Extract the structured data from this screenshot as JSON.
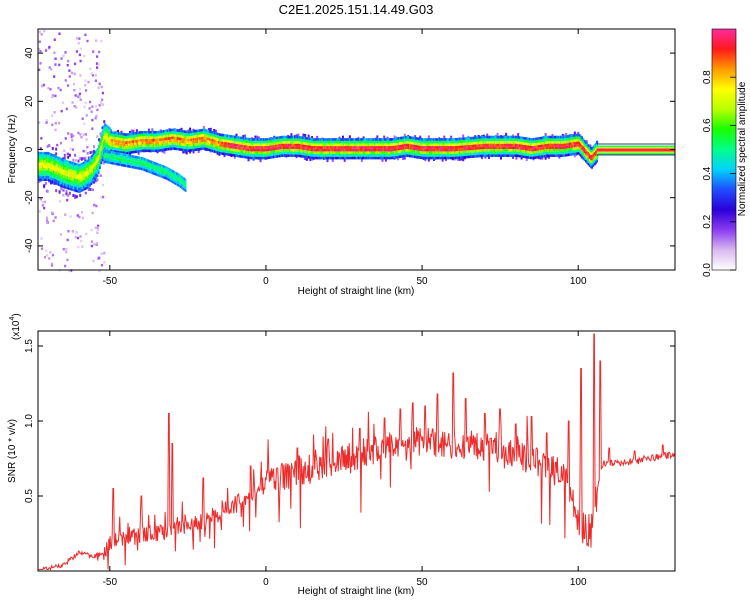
{
  "title": "C2E1.2025.151.14.49.G03",
  "colors": {
    "snr_line": "#ee2b2b",
    "frame": "#000000",
    "line_gray": "#777777"
  },
  "colormap": [
    "#ffffff",
    "#d9b8f0",
    "#8a3cf0",
    "#2b00d8",
    "#1f4cff",
    "#00d2ff",
    "#00ff8c",
    "#18ff00",
    "#b8ff00",
    "#ffff00",
    "#ff9a00",
    "#ff1a1a",
    "#ff2aa0"
  ],
  "chart_data": [
    {
      "type": "heatmap",
      "xlabel": "Height of straight line (km)",
      "ylabel": "Frequency (Hz)",
      "xlim": [
        -73,
        131
      ],
      "ylim": [
        -50,
        50
      ],
      "xticks": [
        -50,
        0,
        50,
        100
      ],
      "yticks": [
        -40,
        -20,
        0,
        20,
        40
      ],
      "colorbar": {
        "label": "Normalized spectral amplitude",
        "range": [
          0,
          1
        ],
        "ticks": [
          "0.0",
          "0.2",
          "0.4",
          "0.6",
          "0.8"
        ],
        "tick_values": [
          0,
          0.2,
          0.4,
          0.6,
          0.8
        ]
      },
      "main_trace": [
        {
          "x": -70,
          "y": -6
        },
        {
          "x": -65,
          "y": -9
        },
        {
          "x": -60,
          "y": -11
        },
        {
          "x": -57,
          "y": -9
        },
        {
          "x": -54,
          "y": -4
        },
        {
          "x": -52,
          "y": 6
        },
        {
          "x": -50,
          "y": 4
        },
        {
          "x": -45,
          "y": 3
        },
        {
          "x": -40,
          "y": 4
        },
        {
          "x": -35,
          "y": 4
        },
        {
          "x": -30,
          "y": 5
        },
        {
          "x": -25,
          "y": 4
        },
        {
          "x": -20,
          "y": 5
        },
        {
          "x": -15,
          "y": 3
        },
        {
          "x": -10,
          "y": 2
        },
        {
          "x": -5,
          "y": 1
        },
        {
          "x": 0,
          "y": 1
        },
        {
          "x": 5,
          "y": 2
        },
        {
          "x": 10,
          "y": 2
        },
        {
          "x": 15,
          "y": 1
        },
        {
          "x": 20,
          "y": 1
        },
        {
          "x": 30,
          "y": 1
        },
        {
          "x": 40,
          "y": 1
        },
        {
          "x": 45,
          "y": 2
        },
        {
          "x": 50,
          "y": 1
        },
        {
          "x": 55,
          "y": 1
        },
        {
          "x": 60,
          "y": 1
        },
        {
          "x": 70,
          "y": 2
        },
        {
          "x": 75,
          "y": 2
        },
        {
          "x": 80,
          "y": 2
        },
        {
          "x": 85,
          "y": 1
        },
        {
          "x": 90,
          "y": 2
        },
        {
          "x": 95,
          "y": 2
        },
        {
          "x": 100,
          "y": 3
        },
        {
          "x": 102,
          "y": 0
        },
        {
          "x": 104,
          "y": -3
        },
        {
          "x": 106,
          "y": 0
        }
      ],
      "secondary_trace": [
        {
          "x": -52,
          "y": -2
        },
        {
          "x": -48,
          "y": -3
        },
        {
          "x": -44,
          "y": -4
        },
        {
          "x": -40,
          "y": -5
        },
        {
          "x": -36,
          "y": -7
        },
        {
          "x": -32,
          "y": -9
        },
        {
          "x": -28,
          "y": -12
        },
        {
          "x": -26,
          "y": -14
        }
      ],
      "constant_line": {
        "x_start": 106,
        "x_end": 131,
        "y": 0
      }
    },
    {
      "type": "line",
      "xlabel": "Height of straight line (km)",
      "ylabel": "SNR (10 * v/v)",
      "y_multiplier_label": "(x10",
      "y_multiplier_exponent": "4",
      "y_multiplier_close": ")",
      "xlim": [
        -73,
        131
      ],
      "ylim": [
        0,
        1.6
      ],
      "xticks": [
        -50,
        0,
        50,
        100
      ],
      "yticks": [
        "0.5",
        "1.0",
        "1.5"
      ],
      "ytick_values": [
        0.5,
        1.0,
        1.5
      ],
      "series": [
        {
          "envelope": [
            {
              "x": -73,
              "y": 0.0
            },
            {
              "x": -65,
              "y": 0.04
            },
            {
              "x": -60,
              "y": 0.12
            },
            {
              "x": -55,
              "y": 0.1
            },
            {
              "x": -52,
              "y": 0.12
            },
            {
              "x": -50,
              "y": 0.2
            },
            {
              "x": -45,
              "y": 0.22
            },
            {
              "x": -40,
              "y": 0.23
            },
            {
              "x": -35,
              "y": 0.25
            },
            {
              "x": -30,
              "y": 0.26
            },
            {
              "x": -25,
              "y": 0.32
            },
            {
              "x": -20,
              "y": 0.34
            },
            {
              "x": -15,
              "y": 0.38
            },
            {
              "x": -10,
              "y": 0.44
            },
            {
              "x": -5,
              "y": 0.5
            },
            {
              "x": 0,
              "y": 0.58
            },
            {
              "x": 5,
              "y": 0.63
            },
            {
              "x": 10,
              "y": 0.66
            },
            {
              "x": 15,
              "y": 0.68
            },
            {
              "x": 20,
              "y": 0.72
            },
            {
              "x": 25,
              "y": 0.75
            },
            {
              "x": 30,
              "y": 0.78
            },
            {
              "x": 35,
              "y": 0.8
            },
            {
              "x": 40,
              "y": 0.84
            },
            {
              "x": 45,
              "y": 0.86
            },
            {
              "x": 50,
              "y": 0.86
            },
            {
              "x": 55,
              "y": 0.85
            },
            {
              "x": 60,
              "y": 0.84
            },
            {
              "x": 65,
              "y": 0.84
            },
            {
              "x": 70,
              "y": 0.82
            },
            {
              "x": 75,
              "y": 0.8
            },
            {
              "x": 80,
              "y": 0.78
            },
            {
              "x": 85,
              "y": 0.74
            },
            {
              "x": 90,
              "y": 0.7
            },
            {
              "x": 95,
              "y": 0.64
            },
            {
              "x": 98,
              "y": 0.52
            },
            {
              "x": 100,
              "y": 0.32
            },
            {
              "x": 102,
              "y": 0.24
            },
            {
              "x": 104,
              "y": 0.26
            },
            {
              "x": 106,
              "y": 0.55
            },
            {
              "x": 108,
              "y": 0.72
            },
            {
              "x": 115,
              "y": 0.72
            },
            {
              "x": 120,
              "y": 0.74
            },
            {
              "x": 125,
              "y": 0.76
            },
            {
              "x": 131,
              "y": 0.78
            }
          ],
          "spikes": [
            {
              "x": -49,
              "y": 0.55
            },
            {
              "x": -40,
              "y": 0.5
            },
            {
              "x": -31,
              "y": 1.05
            },
            {
              "x": -30,
              "y": 0.85
            },
            {
              "x": -20,
              "y": 0.62
            },
            {
              "x": -5,
              "y": 0.7
            },
            {
              "x": 10,
              "y": 0.82
            },
            {
              "x": 20,
              "y": 0.88
            },
            {
              "x": 30,
              "y": 0.95
            },
            {
              "x": 38,
              "y": 1.02
            },
            {
              "x": 43,
              "y": 1.08
            },
            {
              "x": 47,
              "y": 1.12
            },
            {
              "x": 51,
              "y": 1.1
            },
            {
              "x": 55,
              "y": 1.18
            },
            {
              "x": 60,
              "y": 1.32
            },
            {
              "x": 64,
              "y": 1.15
            },
            {
              "x": 70,
              "y": 1.05
            },
            {
              "x": 75,
              "y": 1.08
            },
            {
              "x": 80,
              "y": 0.98
            },
            {
              "x": 85,
              "y": 1.03
            },
            {
              "x": 90,
              "y": 0.92
            },
            {
              "x": 97,
              "y": 1.0
            },
            {
              "x": 101,
              "y": 1.35
            },
            {
              "x": 105,
              "y": 1.58
            },
            {
              "x": 107,
              "y": 1.4
            },
            {
              "x": 110,
              "y": 0.82
            },
            {
              "x": 118,
              "y": 0.8
            },
            {
              "x": 127,
              "y": 0.84
            }
          ]
        }
      ]
    }
  ]
}
